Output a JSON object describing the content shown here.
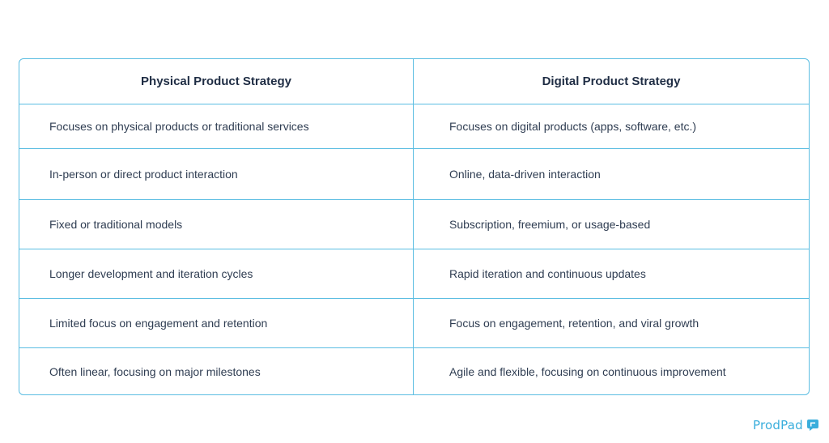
{
  "table": {
    "headers": [
      "Physical Product Strategy",
      "Digital Product Strategy"
    ],
    "rows": [
      [
        "Focuses on physical products or traditional services",
        "Focuses on digital products (apps, software, etc.)"
      ],
      [
        "In-person or direct product interaction",
        "Online, data-driven interaction"
      ],
      [
        "Fixed or traditional models",
        "Subscription, freemium, or usage-based"
      ],
      [
        "Longer development and iteration cycles",
        "Rapid iteration and continuous updates"
      ],
      [
        "Limited focus on engagement and retention",
        "Focus on engagement, retention, and viral growth"
      ],
      [
        "Often linear, focusing on major milestones",
        "Agile and flexible, focusing on continuous improvement"
      ]
    ]
  },
  "brand": {
    "name": "ProdPad",
    "logo_icon": "prodpad-logo-icon",
    "color": "#3aaedc"
  },
  "colors": {
    "border": "#5bbde2",
    "text": "#2f3d52"
  }
}
